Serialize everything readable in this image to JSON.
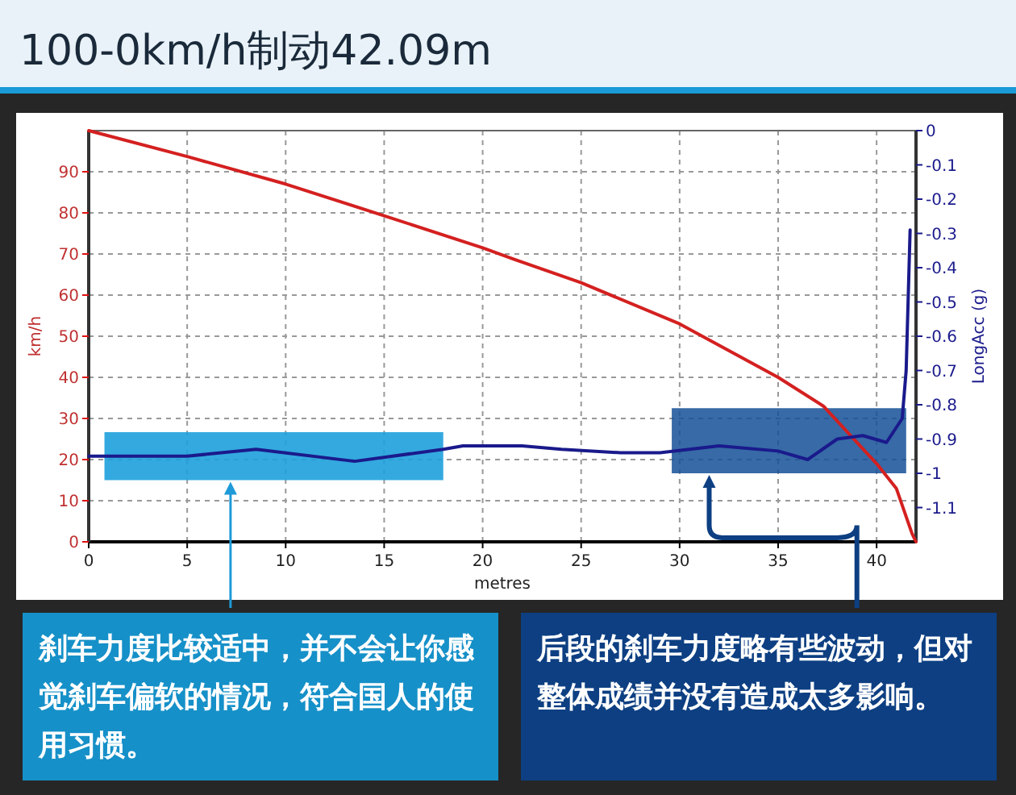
{
  "chart_data": {
    "type": "line",
    "title": "100-0km/h制动42.09m",
    "xlabel": "metres",
    "ylabel": "km/h",
    "y2label": "LongAcc (g)",
    "xlim": [
      0,
      42
    ],
    "xticks": [
      0,
      5,
      10,
      15,
      20,
      25,
      30,
      35,
      40
    ],
    "ylim": [
      0,
      100
    ],
    "yticks": [
      0,
      10,
      20,
      30,
      40,
      50,
      60,
      70,
      80,
      90
    ],
    "y2lim": [
      -1.2,
      0
    ],
    "y2ticks": [
      0,
      -0.1,
      -0.2,
      -0.3,
      -0.4,
      -0.5,
      -0.6,
      -0.7,
      -0.8,
      -0.9,
      -1,
      -1.1
    ],
    "grid": true,
    "series": [
      {
        "color": "#d42020",
        "x": [
          0,
          5,
          10,
          15,
          20,
          21.6,
          25,
          30,
          35,
          37.3,
          40,
          41,
          41.8,
          42
        ],
        "values": [
          100,
          93.7,
          87,
          79.3,
          71.5,
          68.7,
          63,
          53,
          40,
          33,
          19,
          13,
          2,
          0
        ]
      },
      {
        "color": "#1a1a8c",
        "axis": "y2",
        "x": [
          0,
          5,
          8.5,
          13.5,
          18,
          19,
          22,
          24,
          27,
          29,
          32,
          35,
          36.5,
          38,
          39.3,
          40.5,
          41.3,
          41.5,
          41.7
        ],
        "values": [
          -0.95,
          -0.95,
          -0.93,
          -0.965,
          -0.93,
          -0.92,
          -0.92,
          -0.93,
          -0.94,
          -0.94,
          -0.92,
          -0.935,
          -0.96,
          -0.9,
          -0.89,
          -0.91,
          -0.84,
          -0.7,
          -0.29
        ]
      }
    ],
    "annotations": [
      "刹车力度比较适中，并不会让你感觉刹车偏软的情况，符合国人的使用习惯。",
      "后段的刹车力度略有些波动，但对整体成绩并没有造成太多影响。"
    ]
  }
}
